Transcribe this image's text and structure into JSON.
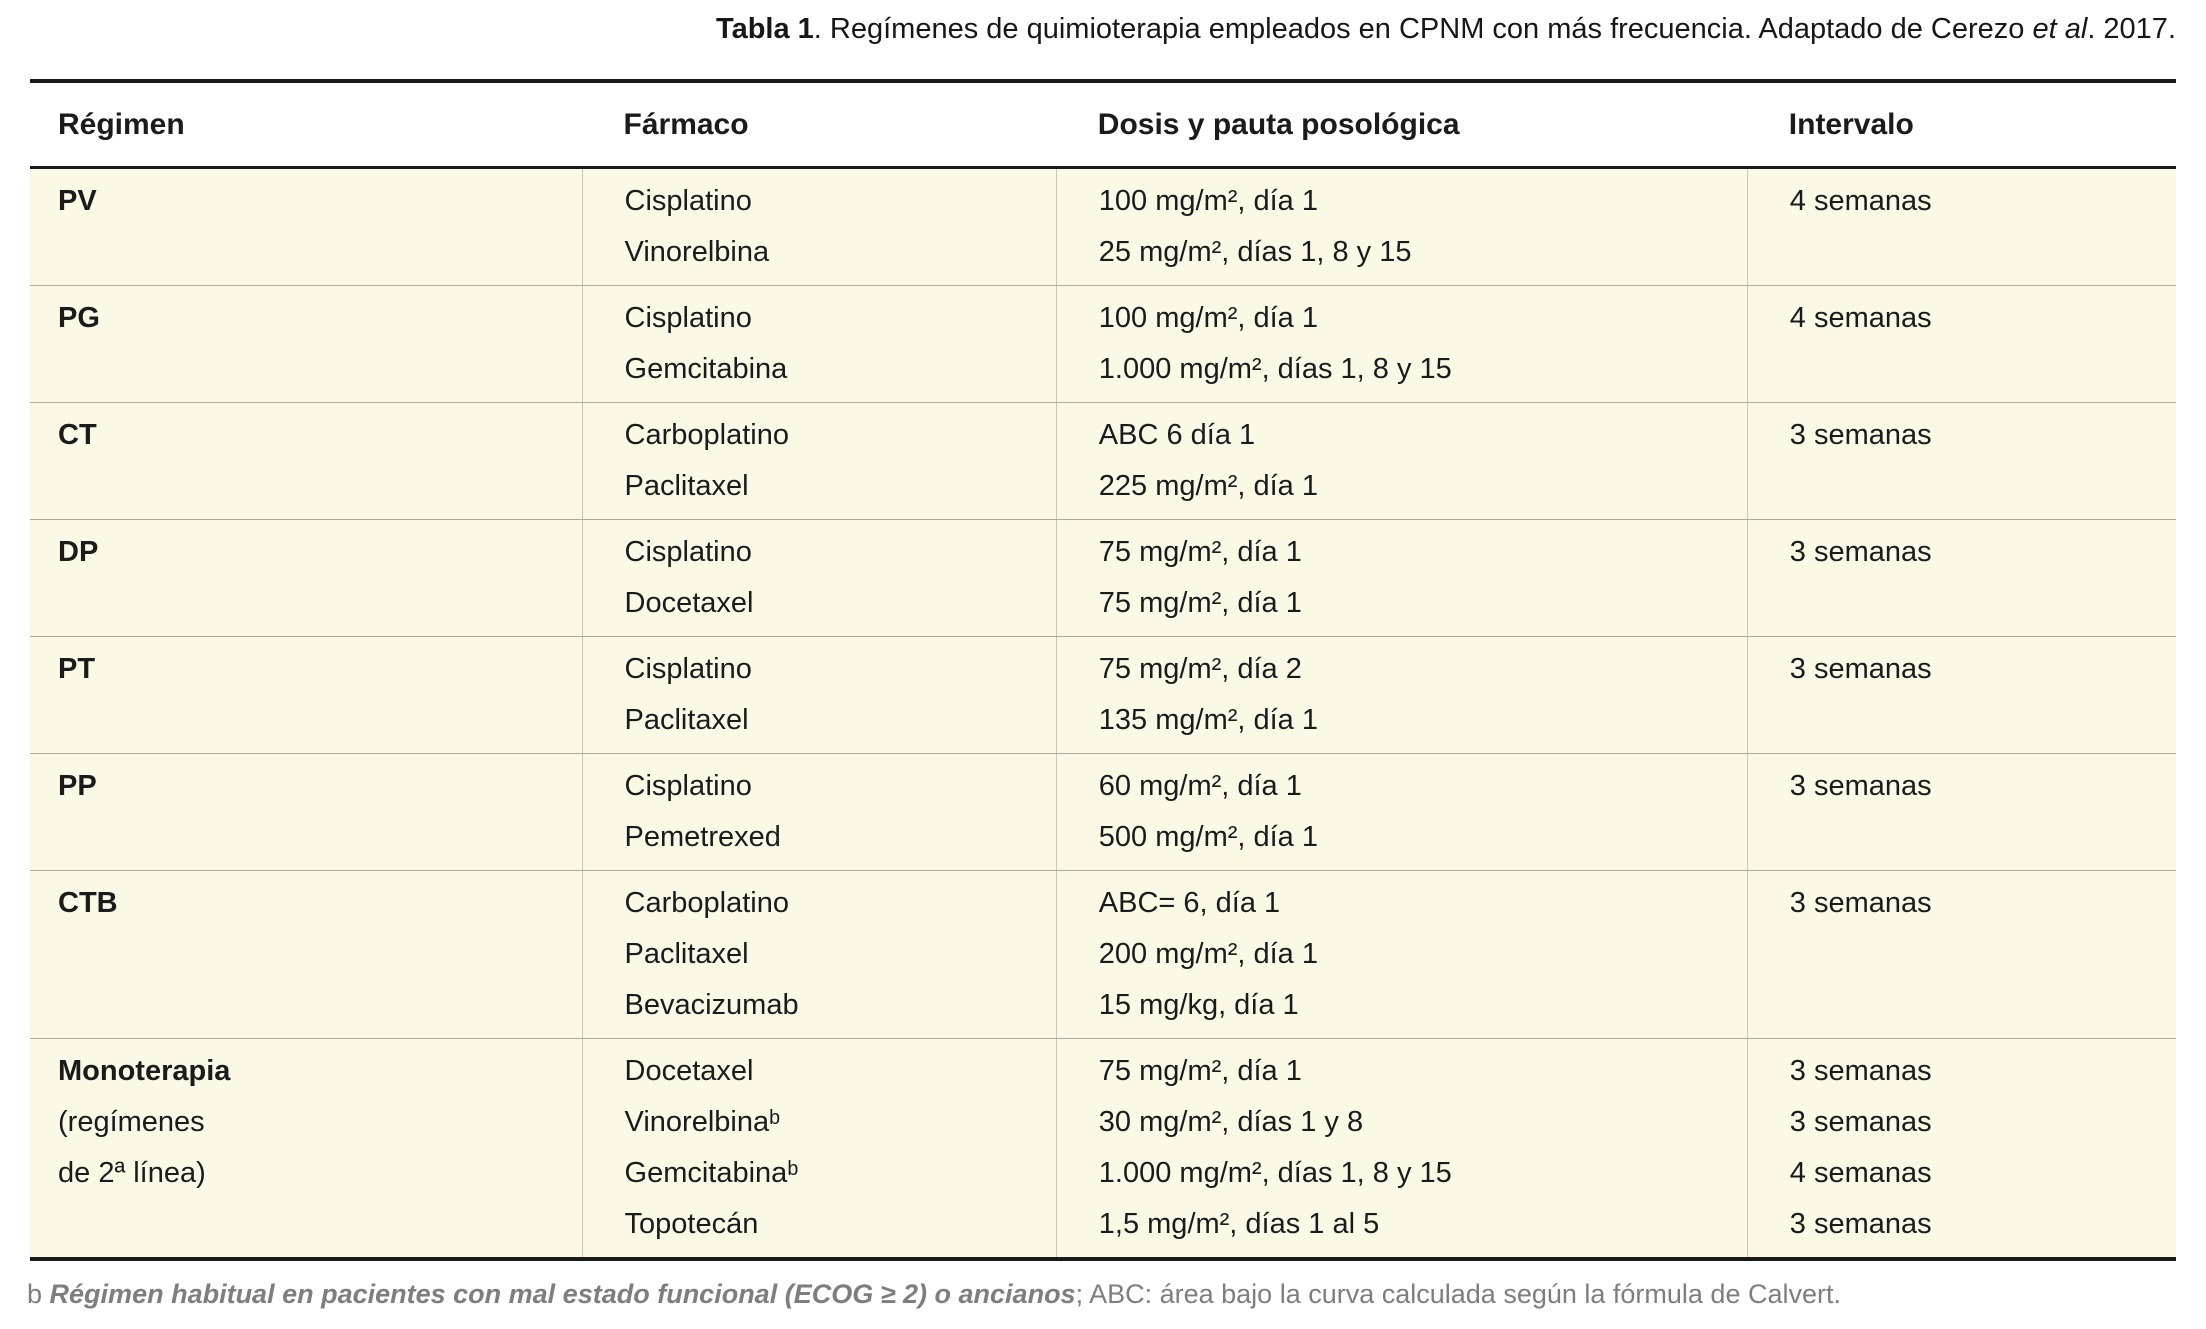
{
  "title": {
    "label": "Tabla 1",
    "text_after_label": ". Regímenes de quimioterapia empleados en CPNM con más frecuencia. Adaptado de Cerezo",
    "etal": "et al",
    "text_end": ". 2017."
  },
  "table": {
    "columns": [
      "Régimen",
      "Fármaco",
      "Dosis y pauta posológica",
      "Intervalo"
    ],
    "rows": [
      {
        "regimen": "PV",
        "regimen_sub": [],
        "drugs": [
          "Cisplatino",
          "Vinorelbina"
        ],
        "doses": [
          "100 mg/m², día 1",
          "25 mg/m², días 1, 8 y 15"
        ],
        "intervals": [
          "4 semanas"
        ]
      },
      {
        "regimen": "PG",
        "regimen_sub": [],
        "drugs": [
          "Cisplatino",
          "Gemcitabina"
        ],
        "doses": [
          "100 mg/m², día 1",
          "1.000 mg/m², días 1, 8 y 15"
        ],
        "intervals": [
          "4 semanas"
        ]
      },
      {
        "regimen": "CT",
        "regimen_sub": [],
        "drugs": [
          "Carboplatino",
          "Paclitaxel"
        ],
        "doses": [
          "ABC 6 día 1",
          "225 mg/m², día 1"
        ],
        "intervals": [
          "3 semanas"
        ]
      },
      {
        "regimen": "DP",
        "regimen_sub": [],
        "drugs": [
          "Cisplatino",
          "Docetaxel"
        ],
        "doses": [
          "75 mg/m², día 1",
          "75 mg/m², día 1"
        ],
        "intervals": [
          "3 semanas"
        ]
      },
      {
        "regimen": "PT",
        "regimen_sub": [],
        "drugs": [
          "Cisplatino",
          "Paclitaxel"
        ],
        "doses": [
          "75 mg/m², día 2",
          "135 mg/m², día 1"
        ],
        "intervals": [
          "3 semanas"
        ]
      },
      {
        "regimen": "PP",
        "regimen_sub": [],
        "drugs": [
          "Cisplatino",
          "Pemetrexed"
        ],
        "doses": [
          "60 mg/m², día 1",
          "500 mg/m², día 1"
        ],
        "intervals": [
          "3 semanas"
        ]
      },
      {
        "regimen": "CTB",
        "regimen_sub": [],
        "drugs": [
          "Carboplatino",
          "Paclitaxel",
          "Bevacizumab"
        ],
        "doses": [
          "ABC= 6, día 1",
          "200 mg/m², día 1",
          "15 mg/kg, día 1"
        ],
        "intervals": [
          "3 semanas"
        ]
      },
      {
        "regimen": "Monoterapia",
        "regimen_sub": [
          "(regímenes",
          "de 2ª línea)"
        ],
        "drugs": [
          "Docetaxel",
          "Vinorelbinaᵇ",
          "Gemcitabinaᵇ",
          "Topotecán"
        ],
        "doses": [
          "75 mg/m², día 1",
          "30 mg/m², días 1 y 8",
          "1.000 mg/m², días 1, 8 y 15",
          "1,5 mg/m², días 1 al 5"
        ],
        "intervals": [
          "3 semanas",
          "3 semanas",
          "4 semanas",
          "3 semanas"
        ]
      }
    ]
  },
  "footnote": {
    "marker": "b",
    "emphasis": "Régimen habitual en pacientes con mal estado funcional (ECOG ≥ 2) o ancianos",
    "rest": "; ABC: área bajo la curva calculada según la fórmula de Calvert."
  },
  "colors": {
    "row_background": "#FBF8E6",
    "strong_border": "#1A1A1A",
    "column_divider": "#C6C6BA",
    "row_separator": "#ABAB9F",
    "body_text": "#1B1B1B",
    "footnote_text": "#7E7E7E"
  }
}
